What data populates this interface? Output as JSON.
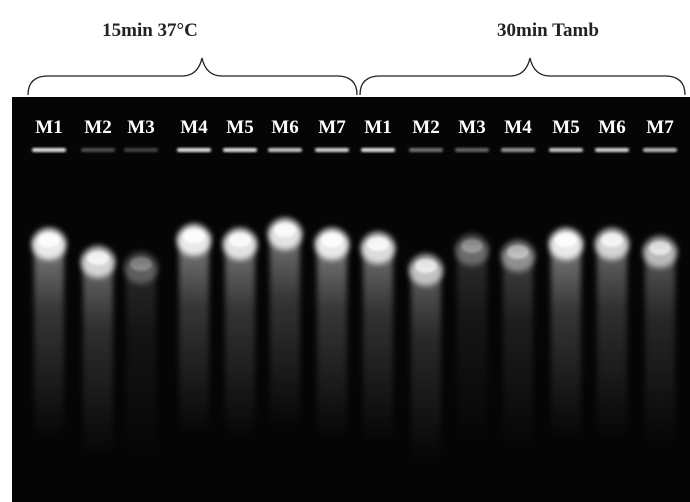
{
  "groups": [
    {
      "label": "15min 37°C",
      "lanes": [
        "M1",
        "M2",
        "M3",
        "M4",
        "M5",
        "M6",
        "M7"
      ]
    },
    {
      "label": "30min Tamb",
      "lanes": [
        "M1",
        "M2",
        "M3",
        "M4",
        "M5",
        "M6",
        "M7"
      ]
    }
  ]
}
